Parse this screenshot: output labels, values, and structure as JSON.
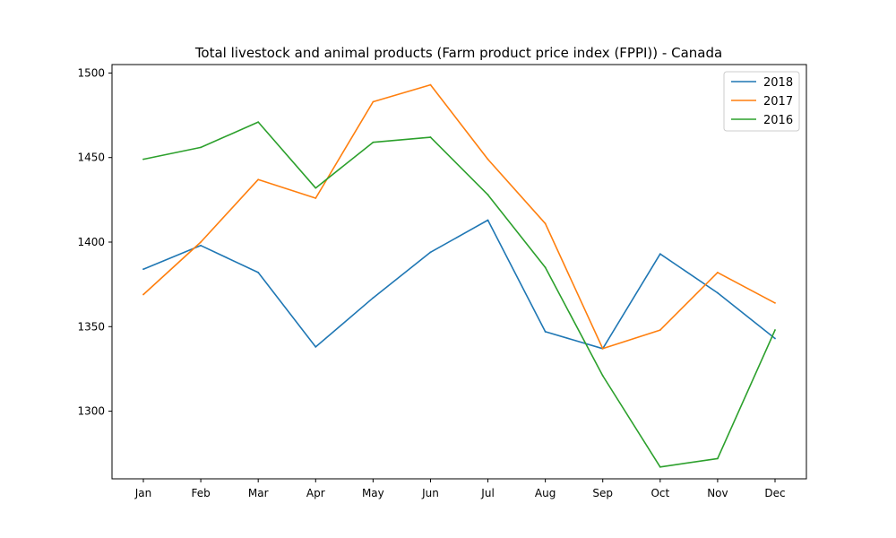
{
  "chart_data": {
    "type": "line",
    "title": "Total livestock and animal products (Farm product price index (FPPI)) - Canada",
    "xlabel": "",
    "ylabel": "",
    "categories": [
      "Jan",
      "Feb",
      "Mar",
      "Apr",
      "May",
      "Jun",
      "Jul",
      "Aug",
      "Sep",
      "Oct",
      "Nov",
      "Dec"
    ],
    "ylim": [
      1260,
      1505
    ],
    "yticks": [
      1300,
      1350,
      1400,
      1450,
      1500
    ],
    "grid": false,
    "legend_position": "top-right",
    "series": [
      {
        "name": "2018",
        "color": "#1f77b4",
        "values": [
          1384,
          1398,
          1382,
          1338,
          1367,
          1394,
          1413,
          1347,
          1337,
          1393,
          1370,
          1343
        ]
      },
      {
        "name": "2017",
        "color": "#ff7f0e",
        "values": [
          1369,
          1400,
          1437,
          1426,
          1483,
          1493,
          1449,
          1411,
          1337,
          1348,
          1382,
          1364
        ]
      },
      {
        "name": "2016",
        "color": "#2ca02c",
        "values": [
          1449,
          1456,
          1471,
          1432,
          1459,
          1462,
          1428,
          1385,
          1321,
          1267,
          1272,
          1348
        ]
      }
    ]
  }
}
